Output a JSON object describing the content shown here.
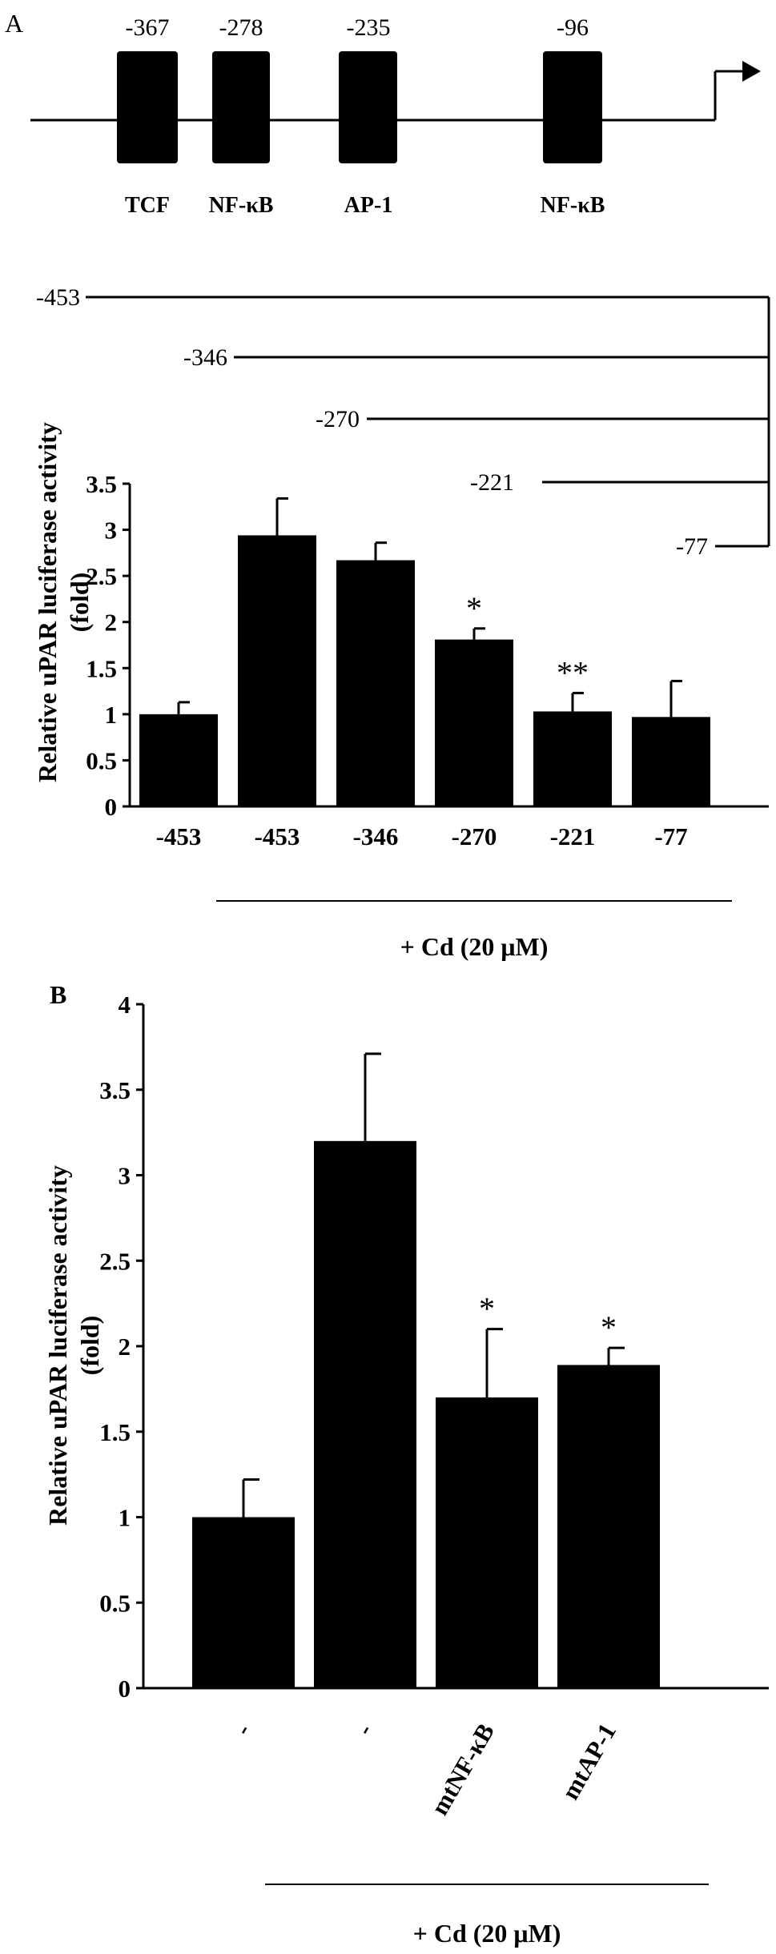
{
  "panel_a": {
    "label": "A",
    "promoter": {
      "sites": [
        {
          "position": "-367",
          "name": "TCF"
        },
        {
          "position": "-278",
          "name": "NF-κB"
        },
        {
          "position": "-235",
          "name": "AP-1"
        },
        {
          "position": "-96",
          "name": "NF-κB"
        }
      ]
    },
    "constructs": [
      "-453",
      "-346",
      "-270",
      "-221",
      "-77"
    ]
  },
  "panel_b": {
    "label": "B"
  },
  "chart_data": [
    {
      "type": "bar",
      "ylabel": "Relative uPAR luciferase activity (fold)",
      "ylabel_lines": [
        "Relative uPAR luciferase activity",
        "(fold)"
      ],
      "ylim": [
        0,
        3.5
      ],
      "yticks": [
        "0",
        "0.5",
        "1",
        "1.5",
        "2",
        "2.5",
        "3",
        "3.5"
      ],
      "categories": [
        "-453",
        "-453",
        "-346",
        "-270",
        "-221",
        "-77"
      ],
      "values": [
        1.0,
        2.94,
        2.67,
        1.81,
        1.03,
        0.97
      ],
      "errors": [
        0.13,
        0.4,
        0.19,
        0.12,
        0.2,
        0.39
      ],
      "significance": [
        "",
        "",
        "",
        "*",
        "**",
        ""
      ],
      "treatment_label": "+ Cd (20 μM)",
      "treatment_span": [
        1,
        5
      ],
      "color": "#000000"
    },
    {
      "type": "bar",
      "ylabel": "Relative uPAR luciferase activity (fold)",
      "ylabel_lines": [
        "Relative uPAR luciferase activity",
        "(fold)"
      ],
      "ylim": [
        0,
        4
      ],
      "yticks": [
        "0",
        "0.5",
        "1",
        "1.5",
        "2",
        "2.5",
        "3",
        "3.5",
        "4"
      ],
      "categories": [
        "-",
        "-",
        "mtNF-κB",
        "mtAP-1"
      ],
      "values": [
        1.0,
        3.2,
        1.7,
        1.89
      ],
      "errors": [
        0.22,
        0.51,
        0.4,
        0.1
      ],
      "significance": [
        "",
        "",
        "*",
        "*"
      ],
      "treatment_label": "+ Cd (20 μM)",
      "treatment_span": [
        1,
        3
      ],
      "color": "#000000"
    }
  ]
}
